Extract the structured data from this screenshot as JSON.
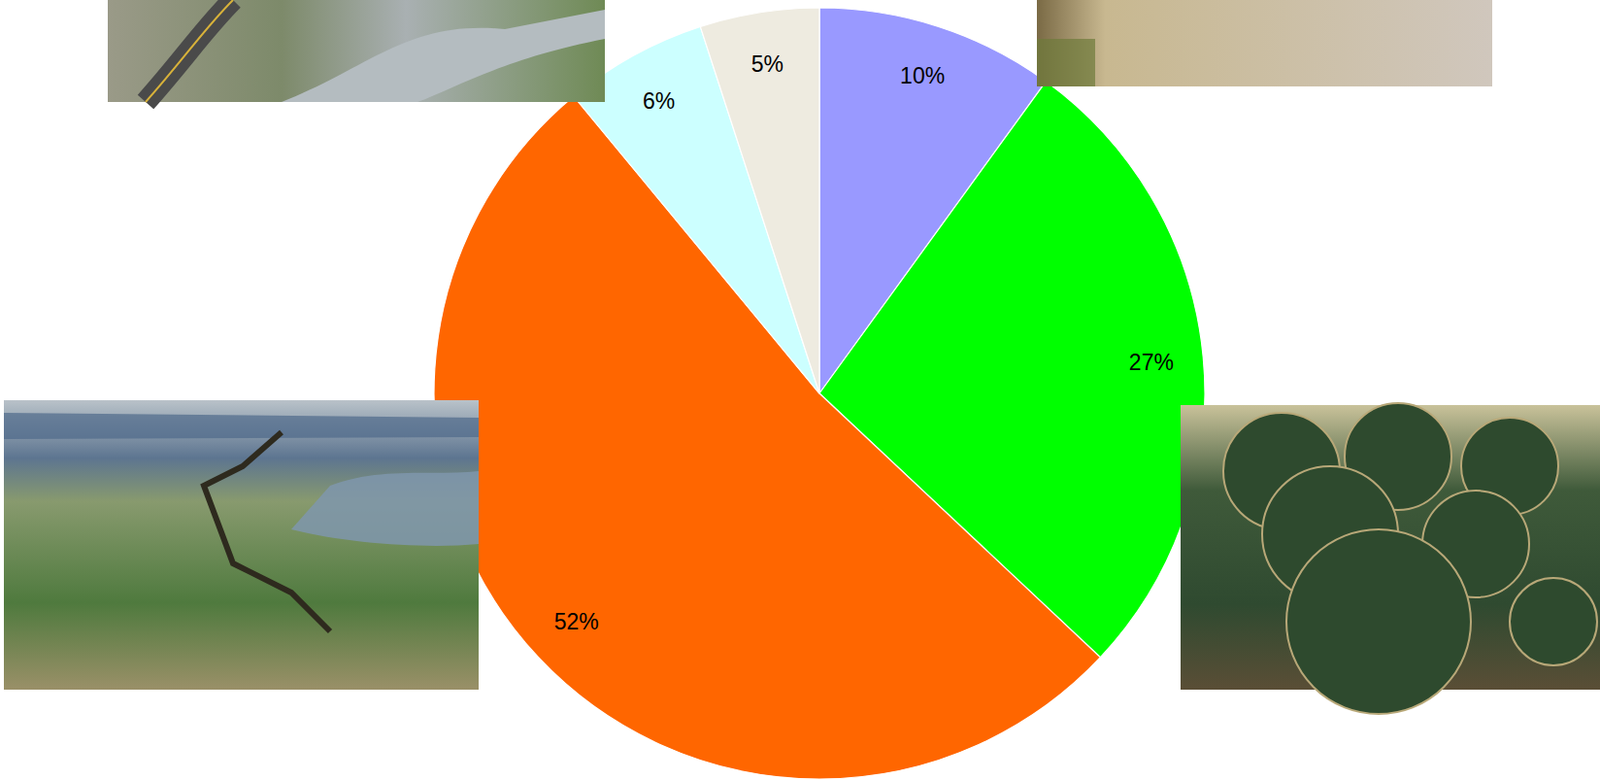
{
  "chart_data": {
    "type": "pie",
    "values": [
      10,
      27,
      52,
      6,
      5
    ],
    "value_labels": [
      "10%",
      "27%",
      "52%",
      "6%",
      "5%"
    ],
    "colors": [
      "#9999ff",
      "#00ff00",
      "#ff6600",
      "#ccffff",
      "#eeebe0"
    ],
    "data_labels": true
  }
}
